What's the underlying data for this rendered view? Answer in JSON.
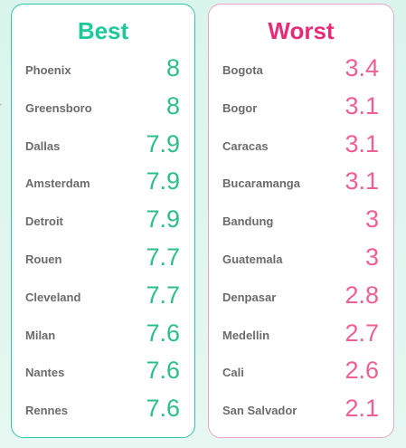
{
  "side_label": "rank",
  "chart_data": {
    "type": "table",
    "panels": [
      {
        "title": "Best",
        "color": "#2dbf8a",
        "rows": [
          {
            "city": "Phoenix",
            "score": "8"
          },
          {
            "city": "Greensboro",
            "score": "8"
          },
          {
            "city": "Dallas",
            "score": "7.9"
          },
          {
            "city": "Amsterdam",
            "score": "7.9"
          },
          {
            "city": "Detroit",
            "score": "7.9"
          },
          {
            "city": "Rouen",
            "score": "7.7"
          },
          {
            "city": "Cleveland",
            "score": "7.7"
          },
          {
            "city": "Milan",
            "score": "7.6"
          },
          {
            "city": "Nantes",
            "score": "7.6"
          },
          {
            "city": "Rennes",
            "score": "7.6"
          }
        ]
      },
      {
        "title": "Worst",
        "color": "#ef5f94",
        "rows": [
          {
            "city": "Bogota",
            "score": "3.4"
          },
          {
            "city": "Bogor",
            "score": "3.1"
          },
          {
            "city": "Caracas",
            "score": "3.1"
          },
          {
            "city": "Bucaramanga",
            "score": "3.1"
          },
          {
            "city": "Bandung",
            "score": "3"
          },
          {
            "city": "Guatemala",
            "score": "3"
          },
          {
            "city": "Denpasar",
            "score": "2.8"
          },
          {
            "city": "Medellin",
            "score": "2.7"
          },
          {
            "city": "Cali",
            "score": "2.6"
          },
          {
            "city": "San Salvador",
            "score": "2.1"
          }
        ]
      }
    ]
  }
}
